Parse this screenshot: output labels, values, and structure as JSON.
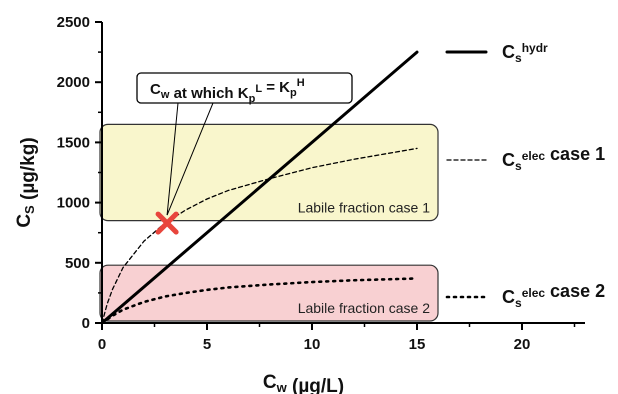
{
  "chart_data": {
    "type": "line",
    "xlabel": {
      "main": "C",
      "sub": "w",
      "unit": " (µg/L)"
    },
    "ylabel": {
      "main": "C",
      "sub": "S",
      "unit": " (µg/kg)"
    },
    "xlim": [
      0,
      23
    ],
    "ylim": [
      0,
      2500
    ],
    "x_ticks": [
      0,
      5,
      10,
      15,
      20
    ],
    "y_ticks": [
      0,
      500,
      1000,
      1500,
      2000,
      2500
    ],
    "grid": false,
    "legend_position": "right",
    "series": [
      {
        "label_main": "C",
        "label_sub": "s",
        "label_sup": "hydr",
        "label_suffix": "",
        "style": "solid",
        "color": "#000000",
        "x": [
          0,
          15
        ],
        "y": [
          0,
          2250
        ]
      },
      {
        "label_main": "C",
        "label_sub": "s",
        "label_sup": "elec",
        "label_suffix": " case 1",
        "style": "dashed",
        "color": "#000000",
        "x": [
          0,
          0.25,
          0.5,
          1,
          2,
          3,
          4,
          5,
          6,
          8,
          10,
          12,
          15
        ],
        "y": [
          0,
          160,
          280,
          460,
          680,
          830,
          940,
          1030,
          1100,
          1200,
          1290,
          1360,
          1450
        ]
      },
      {
        "label_main": "C",
        "label_sub": "s",
        "label_sup": "elec",
        "label_suffix": " case 2",
        "style": "dotted",
        "color": "#000000",
        "x": [
          0,
          0.5,
          1,
          2,
          3,
          4,
          5,
          6,
          8,
          10,
          12,
          15
        ],
        "y": [
          0,
          60,
          110,
          175,
          220,
          250,
          275,
          295,
          320,
          340,
          355,
          370
        ]
      }
    ],
    "regions": [
      {
        "label": "Labile fraction case 1",
        "y_range": [
          850,
          1650
        ],
        "x_range": [
          0,
          16
        ],
        "color": "#f9f6cc"
      },
      {
        "label": "Labile fraction case 2",
        "y_range": [
          0,
          480
        ],
        "x_range": [
          0,
          16
        ],
        "color": "#f8d0d2"
      }
    ],
    "marker": {
      "x": 3.1,
      "y": 830,
      "symbol": "X",
      "color": "#e8453c"
    },
    "callout": {
      "parts": [
        {
          "t": "C",
          "role": "main"
        },
        {
          "t": "w",
          "role": "sub"
        },
        {
          "t": " at which K",
          "role": "main"
        },
        {
          "t": "p",
          "role": "sub"
        },
        {
          "t": "L",
          "role": "sup"
        },
        {
          "t": " = K",
          "role": "main"
        },
        {
          "t": "p",
          "role": "sub"
        },
        {
          "t": "H",
          "role": "sup"
        }
      ]
    }
  }
}
